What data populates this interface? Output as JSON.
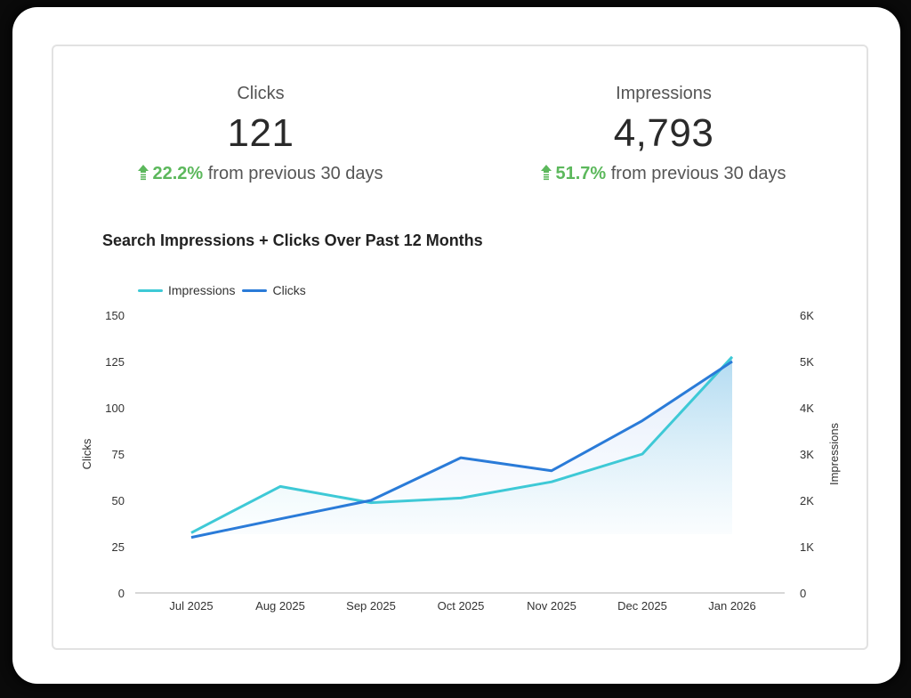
{
  "kpis": {
    "clicks": {
      "label": "Clicks",
      "value": "121",
      "change_pct": "22.2%",
      "change_text": "from previous 30 days",
      "trend_icon": "up-arrow-icon"
    },
    "impressions": {
      "label": "Impressions",
      "value": "4,793",
      "change_pct": "51.7%",
      "change_text": "from previous 30 days",
      "trend_icon": "up-arrow-icon"
    }
  },
  "colors": {
    "positive": "#5cb85c",
    "impressions_line": "#3ec9d6",
    "clicks_line": "#2a7bd8",
    "axis_line": "#cccccc"
  },
  "chart_data": {
    "type": "line",
    "title": "Search Impressions + Clicks Over Past 12 Months",
    "categories": [
      "Jul 2025",
      "Aug 2025",
      "Sep 2025",
      "Oct 2025",
      "Nov 2025",
      "Dec 2025",
      "Jan 2026"
    ],
    "series": [
      {
        "name": "Impressions",
        "axis": "right",
        "values": [
          1300,
          2300,
          1950,
          2050,
          2400,
          3000,
          5100
        ],
        "area_fill": true
      },
      {
        "name": "Clicks",
        "axis": "left",
        "values": [
          30,
          40,
          50,
          73,
          66,
          93,
          125
        ]
      }
    ],
    "ylabel": "Clicks",
    "ylabel_right": "Impressions",
    "ylim": [
      0,
      150
    ],
    "ylim_right": [
      0,
      6000
    ],
    "yticks": [
      "0",
      "25",
      "50",
      "75",
      "100",
      "125",
      "150"
    ],
    "yticks_right": [
      "0",
      "1K",
      "2K",
      "3K",
      "4K",
      "5K",
      "6K"
    ],
    "legend": [
      "Impressions",
      "Clicks"
    ],
    "legend_position": "top-left",
    "grid": false
  }
}
